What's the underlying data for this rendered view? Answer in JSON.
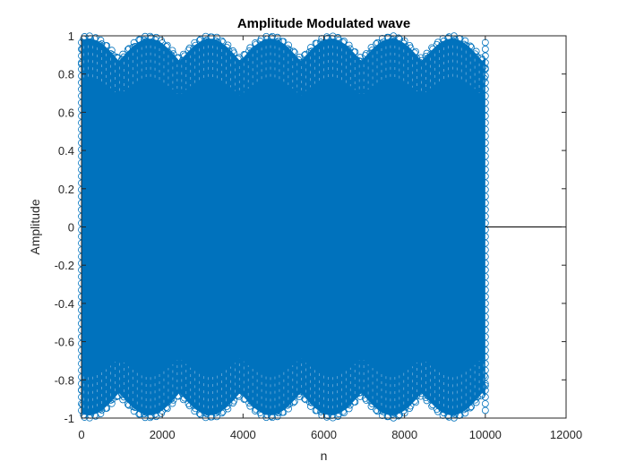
{
  "chart_data": {
    "type": "stem",
    "title": "Amplitude Modulated wave",
    "xlabel": "n",
    "ylabel": "Amplitude",
    "xlim": [
      0,
      12000
    ],
    "ylim": [
      -1,
      1
    ],
    "xticks": [
      "0",
      "2000",
      "4000",
      "6000",
      "8000",
      "10000",
      "12000"
    ],
    "yticks": [
      "1",
      "0.8",
      "0.6",
      "0.4",
      "0.2",
      "0",
      "-0.2",
      "-0.4",
      "-0.6",
      "-0.8",
      "-1"
    ],
    "series": [
      {
        "n_start": 0,
        "n_end": 10000,
        "marker": "circle",
        "color": "#0072BD",
        "envelope_peaks_n": [
          180,
          1680,
          3180,
          4680,
          6180,
          7680,
          9180
        ],
        "envelope_troughs_n": [
          930,
          2430,
          3930,
          5430,
          6930,
          8430
        ],
        "envelope_peak_value": 1.0,
        "envelope_trough_value": 0.88
      }
    ],
    "grid": false
  }
}
